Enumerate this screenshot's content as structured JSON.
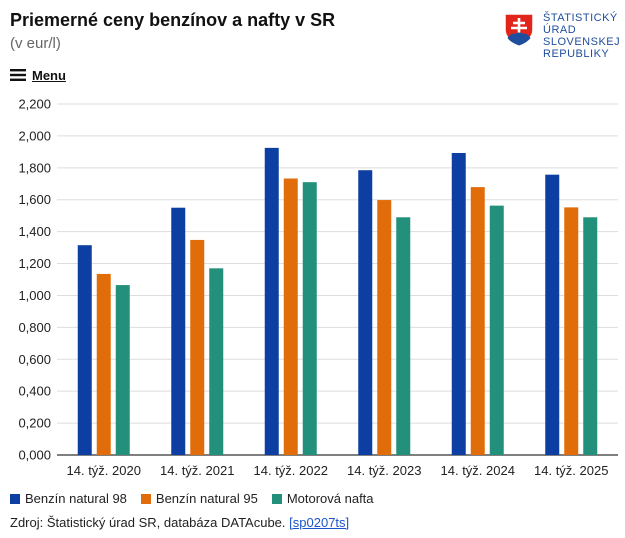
{
  "header": {
    "title": "Priemerné ceny benzínov a nafty v SR",
    "subtitle": "(v eur/l)"
  },
  "logo": {
    "lines": [
      "ŠTATISTICKÝ",
      "ÚRAD",
      "SLOVENSKEJ",
      "REPUBLIKY"
    ],
    "colors": {
      "text": "#1f4e9e",
      "shield_red": "#e1251b",
      "shield_blue": "#1f4e9e"
    }
  },
  "menu": {
    "label": "Menu",
    "icon": "hamburger-icon"
  },
  "chart_data": {
    "type": "bar",
    "title": "Priemerné ceny benzínov a nafty v SR",
    "subtitle": "(v eur/l)",
    "categories": [
      "14. týž. 2020",
      "14. týž. 2021",
      "14. týž. 2022",
      "14. týž. 2023",
      "14. týž. 2024",
      "14. týž. 2025"
    ],
    "series": [
      {
        "name": "Benzín natural 98",
        "color": "#0d3fa3",
        "values": [
          1.315,
          1.55,
          1.925,
          1.785,
          1.893,
          1.757
        ]
      },
      {
        "name": "Benzín natural 95",
        "color": "#e06d0a",
        "values": [
          1.135,
          1.348,
          1.733,
          1.598,
          1.679,
          1.552
        ]
      },
      {
        "name": "Motorová nafta",
        "color": "#22907a",
        "values": [
          1.065,
          1.17,
          1.71,
          1.49,
          1.563,
          1.49
        ]
      }
    ],
    "ylim": [
      0,
      2.2
    ],
    "yticks": [
      "0,000",
      "0,200",
      "0,400",
      "0,600",
      "0,800",
      "1,000",
      "1,200",
      "1,400",
      "1,600",
      "1,800",
      "2,000",
      "2,200"
    ],
    "grid": true,
    "legend_position": "bottom-left"
  },
  "source": {
    "text": "Zdroj: Štatistický úrad SR, databáza DATAcube.",
    "link_label": "[sp0207ts]"
  }
}
